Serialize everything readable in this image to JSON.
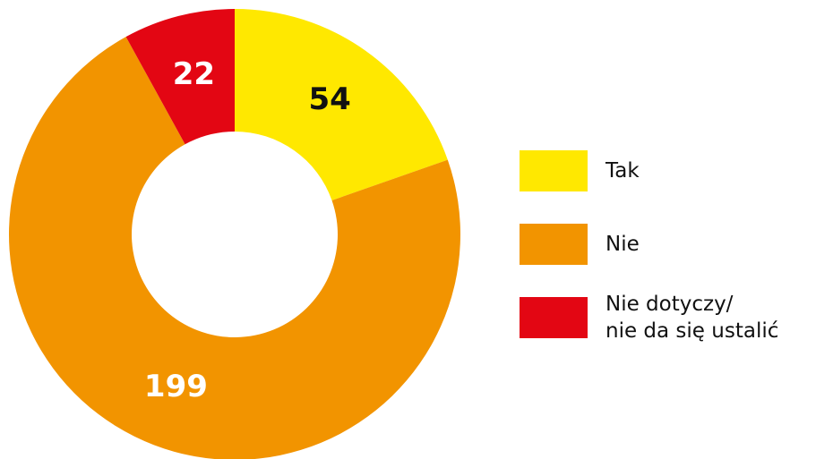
{
  "chart_data": {
    "type": "donut",
    "categories": [
      "Tak",
      "Nie",
      "Nie dotyczy/\nnie da się ustalić"
    ],
    "values": [
      54,
      199,
      22
    ],
    "colors": [
      "#ffe800",
      "#f29400",
      "#e30613"
    ],
    "label_colors": [
      "#111111",
      "#ffffff",
      "#ffffff"
    ],
    "legend": "right"
  }
}
